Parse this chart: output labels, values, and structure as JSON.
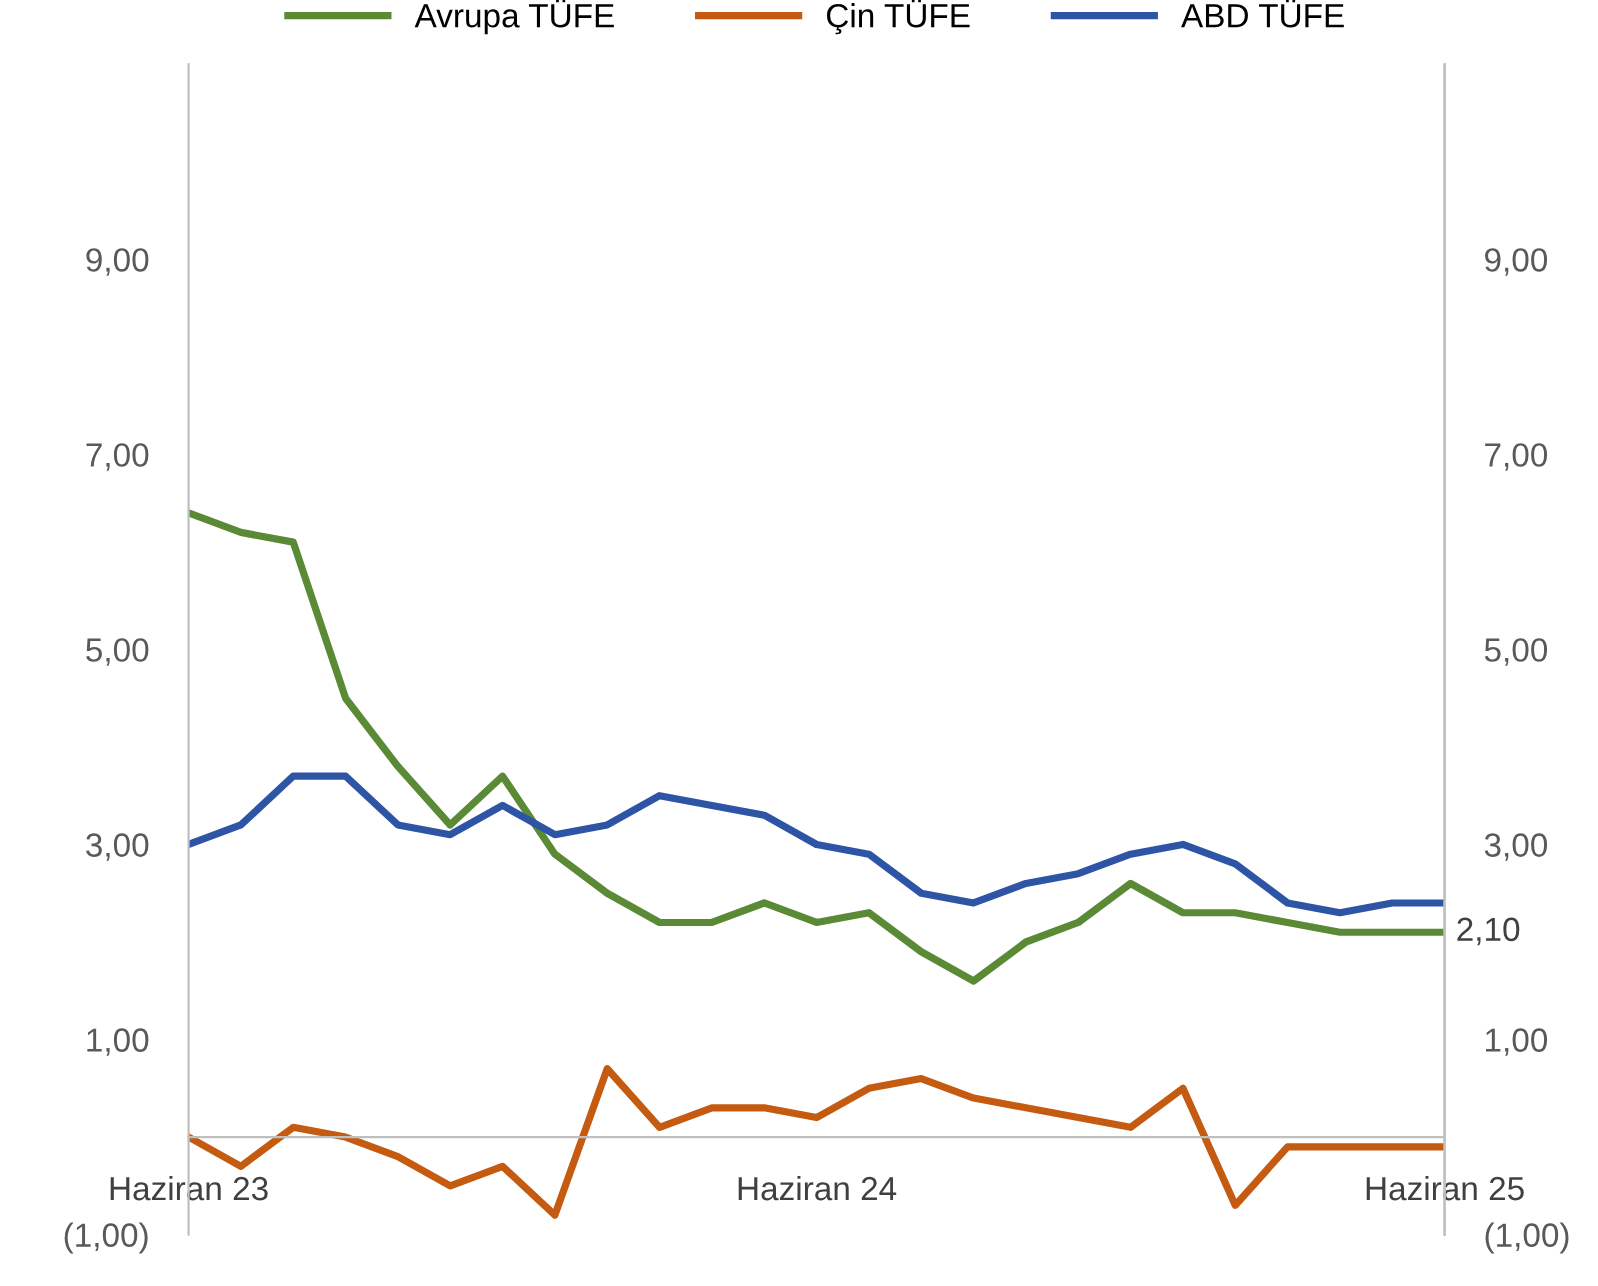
{
  "chart_data": {
    "type": "line",
    "categories": [
      "Haziran 23",
      null,
      null,
      null,
      null,
      null,
      null,
      null,
      null,
      null,
      null,
      null,
      "Haziran 24",
      null,
      null,
      null,
      null,
      null,
      null,
      null,
      null,
      null,
      null,
      null,
      "Haziran 25"
    ],
    "series": [
      {
        "name": "Avrupa TÜFE",
        "color": "#5a8a35",
        "values": [
          6.4,
          6.2,
          6.1,
          4.5,
          3.8,
          3.2,
          3.7,
          2.9,
          2.5,
          2.2,
          2.2,
          2.4,
          2.2,
          2.3,
          1.9,
          1.6,
          2.0,
          2.2,
          2.6,
          2.3,
          2.3,
          2.2,
          2.1,
          2.1,
          2.1
        ],
        "value_labels": [
          null,
          null,
          null,
          null,
          null,
          null,
          null,
          null,
          null,
          null,
          null,
          null,
          null,
          null,
          null,
          null,
          null,
          null,
          null,
          null,
          null,
          null,
          null,
          null,
          "2,10"
        ]
      },
      {
        "name": "Çin TÜFE",
        "color": "#c55a11",
        "values": [
          0.0,
          -0.3,
          0.1,
          0.0,
          -0.2,
          -0.5,
          -0.3,
          -0.8,
          0.7,
          0.1,
          0.3,
          0.3,
          0.2,
          0.5,
          0.6,
          0.4,
          0.3,
          0.2,
          0.1,
          0.5,
          -0.7,
          -0.1,
          -0.1,
          -0.1,
          -0.1
        ]
      },
      {
        "name": "ABD TÜFE",
        "color": "#2e55a5",
        "values": [
          3.0,
          3.2,
          3.7,
          3.7,
          3.2,
          3.1,
          3.4,
          3.1,
          3.2,
          3.5,
          3.4,
          3.3,
          3.0,
          2.9,
          2.5,
          2.4,
          2.6,
          2.7,
          2.9,
          3.0,
          2.8,
          2.4,
          2.3,
          2.4,
          2.4
        ]
      }
    ],
    "ylim": [
      -1,
      11
    ],
    "yticks": [
      {
        "value": -1,
        "label": "(1,00)"
      },
      {
        "value": 1,
        "label": "1,00"
      },
      {
        "value": 3,
        "label": "3,00"
      },
      {
        "value": 5,
        "label": "5,00"
      },
      {
        "value": 7,
        "label": "7,00"
      },
      {
        "value": 9,
        "label": "9,00"
      }
    ],
    "y2lim": [
      -1,
      11
    ],
    "y2ticks": [
      {
        "value": -1,
        "label": "(1,00)"
      },
      {
        "value": 1,
        "label": "1,00"
      },
      {
        "value": 3,
        "label": "3,00"
      },
      {
        "value": 5,
        "label": "5,00"
      },
      {
        "value": 7,
        "label": "7,00"
      },
      {
        "value": 9,
        "label": "9,00"
      }
    ],
    "grid": false,
    "legend": "top",
    "marker": "none",
    "line_style": "solid"
  }
}
